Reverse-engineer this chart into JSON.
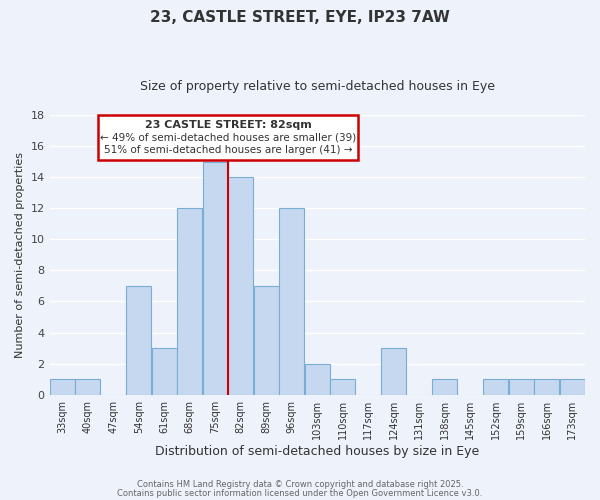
{
  "title": "23, CASTLE STREET, EYE, IP23 7AW",
  "subtitle": "Size of property relative to semi-detached houses in Eye",
  "xlabel": "Distribution of semi-detached houses by size in Eye",
  "ylabel": "Number of semi-detached properties",
  "bin_labels": [
    "33sqm",
    "40sqm",
    "47sqm",
    "54sqm",
    "61sqm",
    "68sqm",
    "75sqm",
    "82sqm",
    "89sqm",
    "96sqm",
    "103sqm",
    "110sqm",
    "117sqm",
    "124sqm",
    "131sqm",
    "138sqm",
    "145sqm",
    "152sqm",
    "159sqm",
    "166sqm",
    "173sqm"
  ],
  "bin_values": [
    1,
    1,
    0,
    7,
    3,
    12,
    15,
    14,
    7,
    12,
    2,
    1,
    0,
    3,
    0,
    1,
    0,
    1,
    1,
    1,
    1
  ],
  "bar_color": "#c5d8f0",
  "bar_edge_color": "#7aadd4",
  "highlight_bin_index": 7,
  "highlight_line_color": "#cc0000",
  "annotation_title": "23 CASTLE STREET: 82sqm",
  "annotation_line1": "← 49% of semi-detached houses are smaller (39)",
  "annotation_line2": "51% of semi-detached houses are larger (41) →",
  "annotation_box_edge": "#cc0000",
  "ylim": [
    0,
    18
  ],
  "yticks": [
    0,
    2,
    4,
    6,
    8,
    10,
    12,
    14,
    16,
    18
  ],
  "background_color": "#eef2fb",
  "grid_color": "#ffffff",
  "footer_line1": "Contains HM Land Registry data © Crown copyright and database right 2025.",
  "footer_line2": "Contains public sector information licensed under the Open Government Licence v3.0."
}
